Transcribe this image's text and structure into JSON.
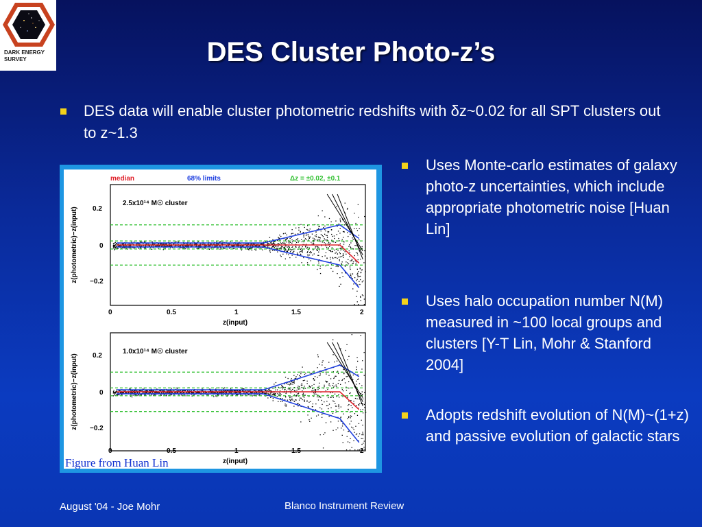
{
  "logo": {
    "line1": "DARK ENERGY",
    "line2": "SURVEY"
  },
  "title": "DES Cluster Photo-z’s",
  "main_bullet": "DES data will enable cluster photometric redshifts with δz~0.02 for all SPT clusters out to z~1.3",
  "figure": {
    "caption": "Figure from Huan Lin",
    "legend": {
      "median": "median",
      "limits": "68% limits",
      "dz": "Δz = ±0.02, ±0.1"
    },
    "panels": [
      {
        "label": "2.5x10¹⁴ M☉ cluster"
      },
      {
        "label": "1.0x10¹⁴ M☉ cluster"
      }
    ],
    "ylabel": "z(photometric)−z(input)",
    "xlabel": "z(input)",
    "x_ticks": [
      "0",
      "0.5",
      "1",
      "1.5",
      "2"
    ],
    "y_ticks": [
      "0.2",
      "0",
      "−0.2"
    ]
  },
  "right_bullets": [
    "Uses Monte-carlo estimates of galaxy photo-z uncertainties, which include appropriate photometric noise [Huan Lin]",
    "Uses halo occupation number N(M) measured in ~100 local groups and clusters [Y-T Lin, Mohr & Stanford 2004]",
    "Adopts redshift evolution of N(M)~(1+z) and passive evolution of galactic stars"
  ],
  "footer": {
    "left": "August '04 - Joe Mohr",
    "center": "Blanco Instrument Review"
  },
  "colors": {
    "bullet": "#f3d21a",
    "median": "#e0202a",
    "limits": "#2040e0",
    "dz_lines": "#30c030"
  }
}
